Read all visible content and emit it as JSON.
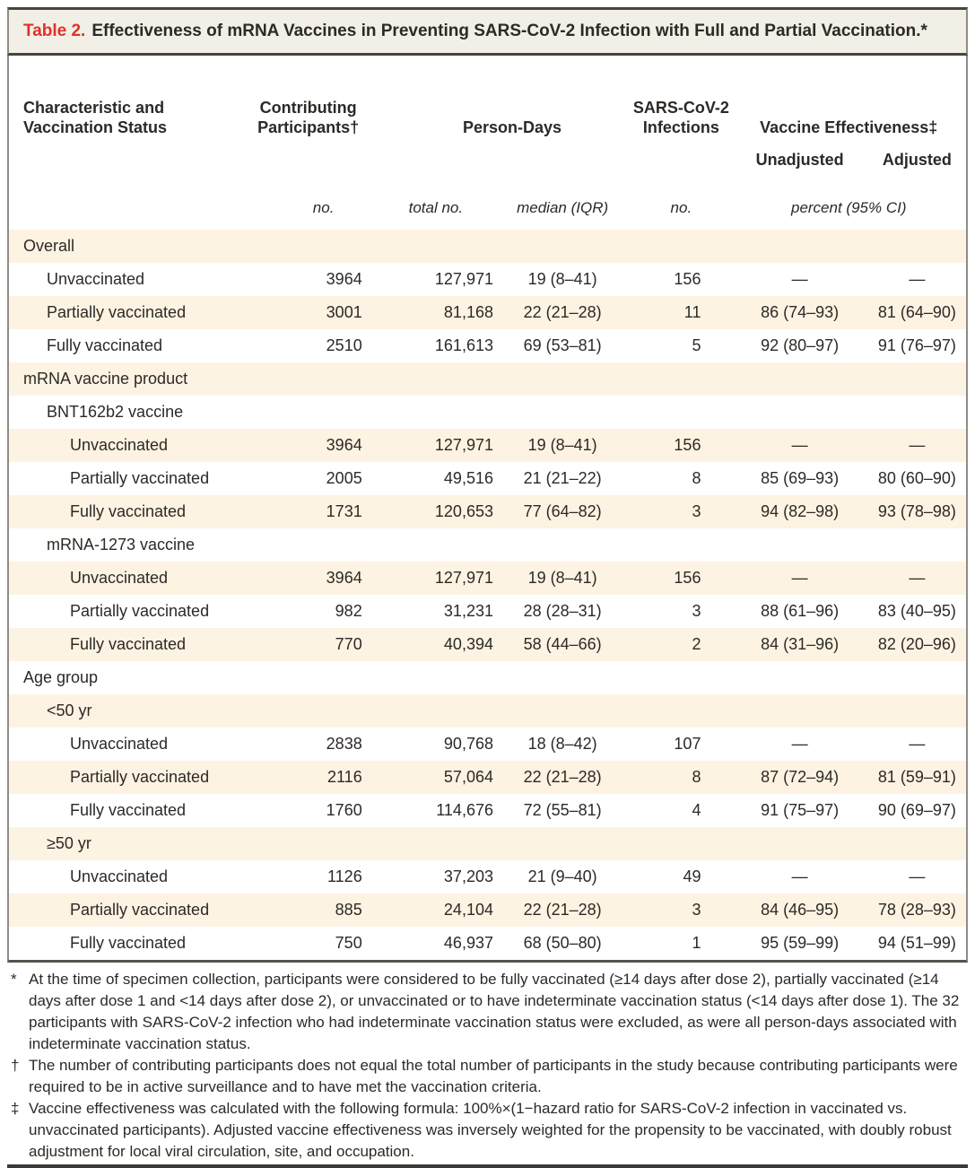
{
  "colors": {
    "accent_red": "#e03229",
    "title_bar_bg": "#f2efe7",
    "row_stripe": "#fdf3e2",
    "rule_dark": "#47443f",
    "side_border_gray": "#8e8c88",
    "text": "#2d2926"
  },
  "table": {
    "title_label": "Table 2.",
    "title_text": "Effectiveness of mRNA Vaccines in Preventing SARS-CoV-2 Infection with Full and Partial Vaccination.*",
    "columns": {
      "characteristic": "Characteristic and Vaccination Status",
      "contributing": "Contributing Participants†",
      "person_days": "Person-Days",
      "infections": "SARS-CoV-2 Infections",
      "effectiveness": "Vaccine Effectiveness‡",
      "unadjusted": "Unadjusted",
      "adjusted": "Adjusted",
      "units": {
        "no_participants": "no.",
        "total_no": "total no.",
        "median_iqr": "median (IQR)",
        "no_infections": "no.",
        "percent_ci": "percent (95% CI)"
      }
    },
    "rows": [
      {
        "label": "Overall",
        "indent": 0,
        "type": "section",
        "values": null
      },
      {
        "label": "Unvaccinated",
        "indent": 1,
        "type": "data",
        "values": [
          "3964",
          "127,971",
          "19 (8–41)",
          "156",
          "—",
          "—"
        ]
      },
      {
        "label": "Partially vaccinated",
        "indent": 1,
        "type": "data",
        "values": [
          "3001",
          "81,168",
          "22 (21–28)",
          "11",
          "86 (74–93)",
          "81 (64–90)"
        ]
      },
      {
        "label": "Fully vaccinated",
        "indent": 1,
        "type": "data",
        "values": [
          "2510",
          "161,613",
          "69 (53–81)",
          "5",
          "92 (80–97)",
          "91 (76–97)"
        ]
      },
      {
        "label": "mRNA vaccine product",
        "indent": 0,
        "type": "section",
        "values": null
      },
      {
        "label": "BNT162b2 vaccine",
        "indent": 1,
        "type": "subsection",
        "values": null
      },
      {
        "label": "Unvaccinated",
        "indent": 2,
        "type": "data",
        "values": [
          "3964",
          "127,971",
          "19 (8–41)",
          "156",
          "—",
          "—"
        ]
      },
      {
        "label": "Partially vaccinated",
        "indent": 2,
        "type": "data",
        "values": [
          "2005",
          "49,516",
          "21 (21–22)",
          "8",
          "85 (69–93)",
          "80 (60–90)"
        ]
      },
      {
        "label": "Fully vaccinated",
        "indent": 2,
        "type": "data",
        "values": [
          "1731",
          "120,653",
          "77 (64–82)",
          "3",
          "94 (82–98)",
          "93 (78–98)"
        ]
      },
      {
        "label": "mRNA-1273 vaccine",
        "indent": 1,
        "type": "subsection",
        "values": null
      },
      {
        "label": "Unvaccinated",
        "indent": 2,
        "type": "data",
        "values": [
          "3964",
          "127,971",
          "19 (8–41)",
          "156",
          "—",
          "—"
        ]
      },
      {
        "label": "Partially vaccinated",
        "indent": 2,
        "type": "data",
        "values": [
          "982",
          "31,231",
          "28 (28–31)",
          "3",
          "88 (61–96)",
          "83 (40–95)"
        ]
      },
      {
        "label": "Fully vaccinated",
        "indent": 2,
        "type": "data",
        "values": [
          "770",
          "40,394",
          "58 (44–66)",
          "2",
          "84 (31–96)",
          "82 (20–96)"
        ]
      },
      {
        "label": "Age group",
        "indent": 0,
        "type": "section",
        "values": null
      },
      {
        "label": "<50 yr",
        "indent": 1,
        "type": "subsection",
        "values": null
      },
      {
        "label": "Unvaccinated",
        "indent": 2,
        "type": "data",
        "values": [
          "2838",
          "90,768",
          "18 (8–42)",
          "107",
          "—",
          "—"
        ]
      },
      {
        "label": "Partially vaccinated",
        "indent": 2,
        "type": "data",
        "values": [
          "2116",
          "57,064",
          "22 (21–28)",
          "8",
          "87 (72–94)",
          "81 (59–91)"
        ]
      },
      {
        "label": "Fully vaccinated",
        "indent": 2,
        "type": "data",
        "values": [
          "1760",
          "114,676",
          "72 (55–81)",
          "4",
          "91 (75–97)",
          "90 (69–97)"
        ]
      },
      {
        "label": "≥50 yr",
        "indent": 1,
        "type": "subsection",
        "values": null
      },
      {
        "label": "Unvaccinated",
        "indent": 2,
        "type": "data",
        "values": [
          "1126",
          "37,203",
          "21 (9–40)",
          "49",
          "—",
          "—"
        ]
      },
      {
        "label": "Partially vaccinated",
        "indent": 2,
        "type": "data",
        "values": [
          "885",
          "24,104",
          "22 (21–28)",
          "3",
          "84 (46–95)",
          "78 (28–93)"
        ]
      },
      {
        "label": "Fully vaccinated",
        "indent": 2,
        "type": "data",
        "values": [
          "750",
          "46,937",
          "68 (50–80)",
          "1",
          "95 (59–99)",
          "94 (51–99)"
        ]
      }
    ]
  },
  "footnotes": [
    {
      "marker": "*",
      "text": "At the time of specimen collection, participants were considered to be fully vaccinated (≥14 days after dose 2), partially vaccinated (≥14 days after dose 1 and <14 days after dose 2), or unvaccinated or to have indeterminate vaccination status (<14 days after dose 1). The 32 participants with SARS-CoV-2 infection who had indeterminate vaccination status were excluded, as were all person-days associated with indeterminate vaccination status."
    },
    {
      "marker": "†",
      "text": "The number of contributing participants does not equal the total number of participants in the study because contributing participants were required to be in active surveillance and to have met the vaccination criteria."
    },
    {
      "marker": "‡",
      "text": "Vaccine effectiveness was calculated with the following formula: 100%×(1−hazard ratio for SARS-CoV-2 infection in vaccinated vs. unvaccinated participants). Adjusted vaccine effectiveness was inversely weighted for the propensity to be vaccinated, with doubly robust adjustment for local viral circulation, site, and occupation."
    }
  ]
}
